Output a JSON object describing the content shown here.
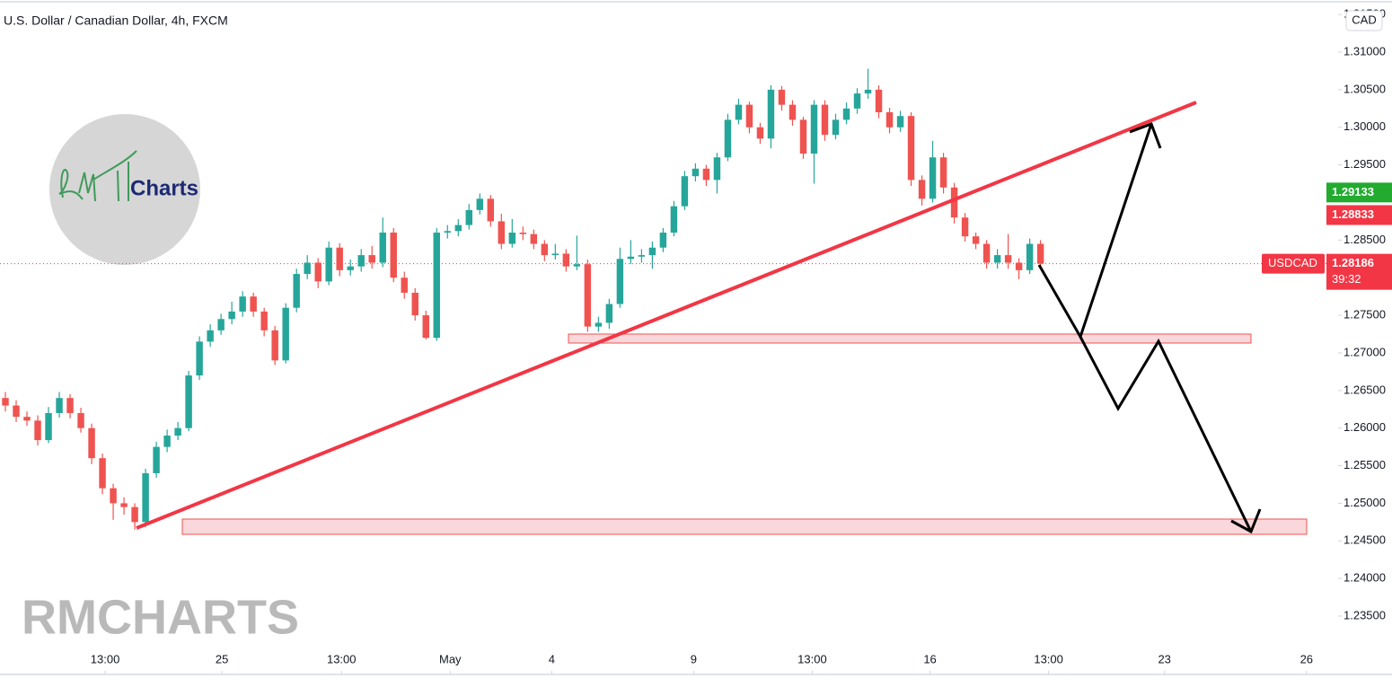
{
  "chart_data": {
    "type": "candlestick",
    "title": "U.S. Dollar / Canadian Dollar, 4h, FXCM",
    "currency": "CAD",
    "symbol": "USDCAD",
    "current_price": 1.28186,
    "countdown": "39:32",
    "up_color": "#26a69a",
    "down_color": "#ef5350",
    "price_tags": [
      {
        "value": 1.29133,
        "color": "#22ab2f"
      },
      {
        "value": 1.28833,
        "color": "#f23645"
      }
    ],
    "watermark": "RMCHARTS",
    "logo_text": "Charts",
    "xlim": [
      -0.5,
      123.6
    ],
    "ylim": [
      1.22736,
      1.31693
    ],
    "xticks": [
      {
        "value": 9.25,
        "label": "13:00"
      },
      {
        "value": 20.08,
        "label": "25"
      },
      {
        "value": 31.17,
        "label": "13:00"
      },
      {
        "value": 41.25,
        "label": "May"
      },
      {
        "value": 50.67,
        "label": "4"
      },
      {
        "value": 63.83,
        "label": "9"
      },
      {
        "value": 74.83,
        "label": "13:00"
      },
      {
        "value": 85.75,
        "label": "16"
      },
      {
        "value": 96.75,
        "label": "13:00"
      },
      {
        "value": 107.5,
        "label": "23"
      },
      {
        "value": 120.67,
        "label": "26"
      }
    ],
    "yticks": [
      {
        "value": 1.235,
        "label": "1.23500"
      },
      {
        "value": 1.24,
        "label": "1.24000"
      },
      {
        "value": 1.245,
        "label": "1.24500"
      },
      {
        "value": 1.25,
        "label": "1.25000"
      },
      {
        "value": 1.255,
        "label": "1.25500"
      },
      {
        "value": 1.26,
        "label": "1.26000"
      },
      {
        "value": 1.265,
        "label": "1.26500"
      },
      {
        "value": 1.27,
        "label": "1.27000"
      },
      {
        "value": 1.275,
        "label": "1.27500"
      },
      {
        "value": 1.285,
        "label": "1.28500"
      },
      {
        "value": 1.295,
        "label": "1.29500"
      },
      {
        "value": 1.3,
        "label": "1.30000"
      },
      {
        "value": 1.305,
        "label": "1.30500"
      },
      {
        "value": 1.31,
        "label": "1.31000"
      },
      {
        "value": 1.315,
        "label": "1.31500"
      }
    ],
    "ohlc": [
      [
        1.264,
        1.2648,
        1.2622,
        1.263
      ],
      [
        1.263,
        1.2637,
        1.2608,
        1.2615
      ],
      [
        1.2615,
        1.2622,
        1.2603,
        1.261
      ],
      [
        1.261,
        1.2617,
        1.2577,
        1.2584
      ],
      [
        1.2584,
        1.2628,
        1.258,
        1.262
      ],
      [
        1.262,
        1.2648,
        1.2614,
        1.264
      ],
      [
        1.264,
        1.2645,
        1.2613,
        1.262
      ],
      [
        1.262,
        1.2627,
        1.2594,
        1.26
      ],
      [
        1.26,
        1.2606,
        1.2552,
        1.256
      ],
      [
        1.256,
        1.2566,
        1.2512,
        1.252
      ],
      [
        1.252,
        1.2526,
        1.2478,
        1.25
      ],
      [
        1.25,
        1.2508,
        1.2485,
        1.2495
      ],
      [
        1.2495,
        1.25,
        1.2465,
        1.2475
      ],
      [
        1.2475,
        1.2546,
        1.2468,
        1.254
      ],
      [
        1.254,
        1.2582,
        1.2534,
        1.2575
      ],
      [
        1.2575,
        1.2598,
        1.2568,
        1.259
      ],
      [
        1.259,
        1.2608,
        1.2584,
        1.26
      ],
      [
        1.26,
        1.2676,
        1.2596,
        1.267
      ],
      [
        1.267,
        1.2722,
        1.2664,
        1.2715
      ],
      [
        1.2715,
        1.2738,
        1.2708,
        1.273
      ],
      [
        1.273,
        1.2752,
        1.2724,
        1.2745
      ],
      [
        1.2745,
        1.2768,
        1.2738,
        1.2755
      ],
      [
        1.2755,
        1.2782,
        1.2748,
        1.2775
      ],
      [
        1.2775,
        1.278,
        1.2748,
        1.2755
      ],
      [
        1.2755,
        1.276,
        1.2722,
        1.273
      ],
      [
        1.273,
        1.2736,
        1.2684,
        1.269
      ],
      [
        1.269,
        1.2766,
        1.2686,
        1.276
      ],
      [
        1.276,
        1.2812,
        1.2754,
        1.2805
      ],
      [
        1.2805,
        1.283,
        1.2798,
        1.282
      ],
      [
        1.282,
        1.2826,
        1.2786,
        1.2795
      ],
      [
        1.2795,
        1.2848,
        1.279,
        1.284
      ],
      [
        1.284,
        1.2846,
        1.2802,
        1.281
      ],
      [
        1.281,
        1.2824,
        1.2803,
        1.2815
      ],
      [
        1.2815,
        1.2838,
        1.2808,
        1.283
      ],
      [
        1.283,
        1.2842,
        1.2812,
        1.282
      ],
      [
        1.282,
        1.288,
        1.2814,
        1.286
      ],
      [
        1.286,
        1.2866,
        1.2794,
        1.28
      ],
      [
        1.28,
        1.2808,
        1.2772,
        1.278
      ],
      [
        1.278,
        1.2786,
        1.2743,
        1.275
      ],
      [
        1.275,
        1.2756,
        1.2718,
        1.272
      ],
      [
        1.272,
        1.2866,
        1.2716,
        1.286
      ],
      [
        1.286,
        1.287,
        1.2852,
        1.2862
      ],
      [
        1.2862,
        1.2878,
        1.2855,
        1.287
      ],
      [
        1.287,
        1.2898,
        1.2864,
        1.289
      ],
      [
        1.289,
        1.2912,
        1.2884,
        1.2905
      ],
      [
        1.2905,
        1.291,
        1.2868,
        1.2875
      ],
      [
        1.2875,
        1.2885,
        1.2838,
        1.2845
      ],
      [
        1.2845,
        1.2878,
        1.284,
        1.286
      ],
      [
        1.286,
        1.2868,
        1.285,
        1.2858
      ],
      [
        1.2858,
        1.2864,
        1.2838,
        1.2845
      ],
      [
        1.2845,
        1.285,
        1.2822,
        1.283
      ],
      [
        1.283,
        1.2845,
        1.2824,
        1.2832
      ],
      [
        1.2832,
        1.2838,
        1.2808,
        1.2815
      ],
      [
        1.2815,
        1.2856,
        1.281,
        1.2818
      ],
      [
        1.2818,
        1.2824,
        1.2728,
        1.2735
      ],
      [
        1.2735,
        1.2748,
        1.2728,
        1.274
      ],
      [
        1.274,
        1.2772,
        1.2732,
        1.2765
      ],
      [
        1.2765,
        1.284,
        1.276,
        1.2825
      ],
      [
        1.2825,
        1.285,
        1.2818,
        1.2828
      ],
      [
        1.2828,
        1.2838,
        1.282,
        1.283
      ],
      [
        1.283,
        1.2848,
        1.2812,
        1.284
      ],
      [
        1.284,
        1.2866,
        1.2834,
        1.286
      ],
      [
        1.286,
        1.2902,
        1.2855,
        1.2895
      ],
      [
        1.2895,
        1.2942,
        1.289,
        1.2935
      ],
      [
        1.2935,
        1.2952,
        1.2928,
        1.2945
      ],
      [
        1.2945,
        1.295,
        1.2922,
        1.293
      ],
      [
        1.293,
        1.2966,
        1.2912,
        1.296
      ],
      [
        1.296,
        1.3018,
        1.2955,
        1.301
      ],
      [
        1.301,
        1.3038,
        1.3004,
        1.303
      ],
      [
        1.303,
        1.3034,
        1.2992,
        1.3
      ],
      [
        1.3,
        1.3006,
        1.2978,
        1.2985
      ],
      [
        1.2985,
        1.3056,
        1.2972,
        1.305
      ],
      [
        1.305,
        1.3055,
        1.3022,
        1.303
      ],
      [
        1.303,
        1.3036,
        1.3002,
        1.301
      ],
      [
        1.301,
        1.3014,
        1.2958,
        1.2965
      ],
      [
        1.2965,
        1.3036,
        1.2925,
        1.303
      ],
      [
        1.303,
        1.3036,
        1.2982,
        1.299
      ],
      [
        1.299,
        1.3018,
        1.2984,
        1.301
      ],
      [
        1.301,
        1.3033,
        1.3004,
        1.3025
      ],
      [
        1.3025,
        1.3052,
        1.3018,
        1.3045
      ],
      [
        1.3045,
        1.3078,
        1.3038,
        1.305
      ],
      [
        1.305,
        1.3056,
        1.3012,
        1.302
      ],
      [
        1.302,
        1.3026,
        1.2992,
        1.3
      ],
      [
        1.3,
        1.3022,
        1.2994,
        1.3015
      ],
      [
        1.3015,
        1.302,
        1.2922,
        1.293
      ],
      [
        1.293,
        1.2936,
        1.2896,
        1.2905
      ],
      [
        1.2905,
        1.2982,
        1.29,
        1.296
      ],
      [
        1.296,
        1.2966,
        1.2912,
        1.292
      ],
      [
        1.292,
        1.2926,
        1.2872,
        1.288
      ],
      [
        1.288,
        1.2886,
        1.2848,
        1.2855
      ],
      [
        1.2855,
        1.286,
        1.2838,
        1.2845
      ],
      [
        1.2845,
        1.285,
        1.2812,
        1.282
      ],
      [
        1.282,
        1.2838,
        1.2812,
        1.283
      ],
      [
        1.283,
        1.2858,
        1.2812,
        1.282
      ],
      [
        1.282,
        1.2826,
        1.2798,
        1.281
      ],
      [
        1.281,
        1.2852,
        1.2805,
        1.2845
      ],
      [
        1.2845,
        1.285,
        1.2812,
        1.28186
      ]
    ]
  }
}
